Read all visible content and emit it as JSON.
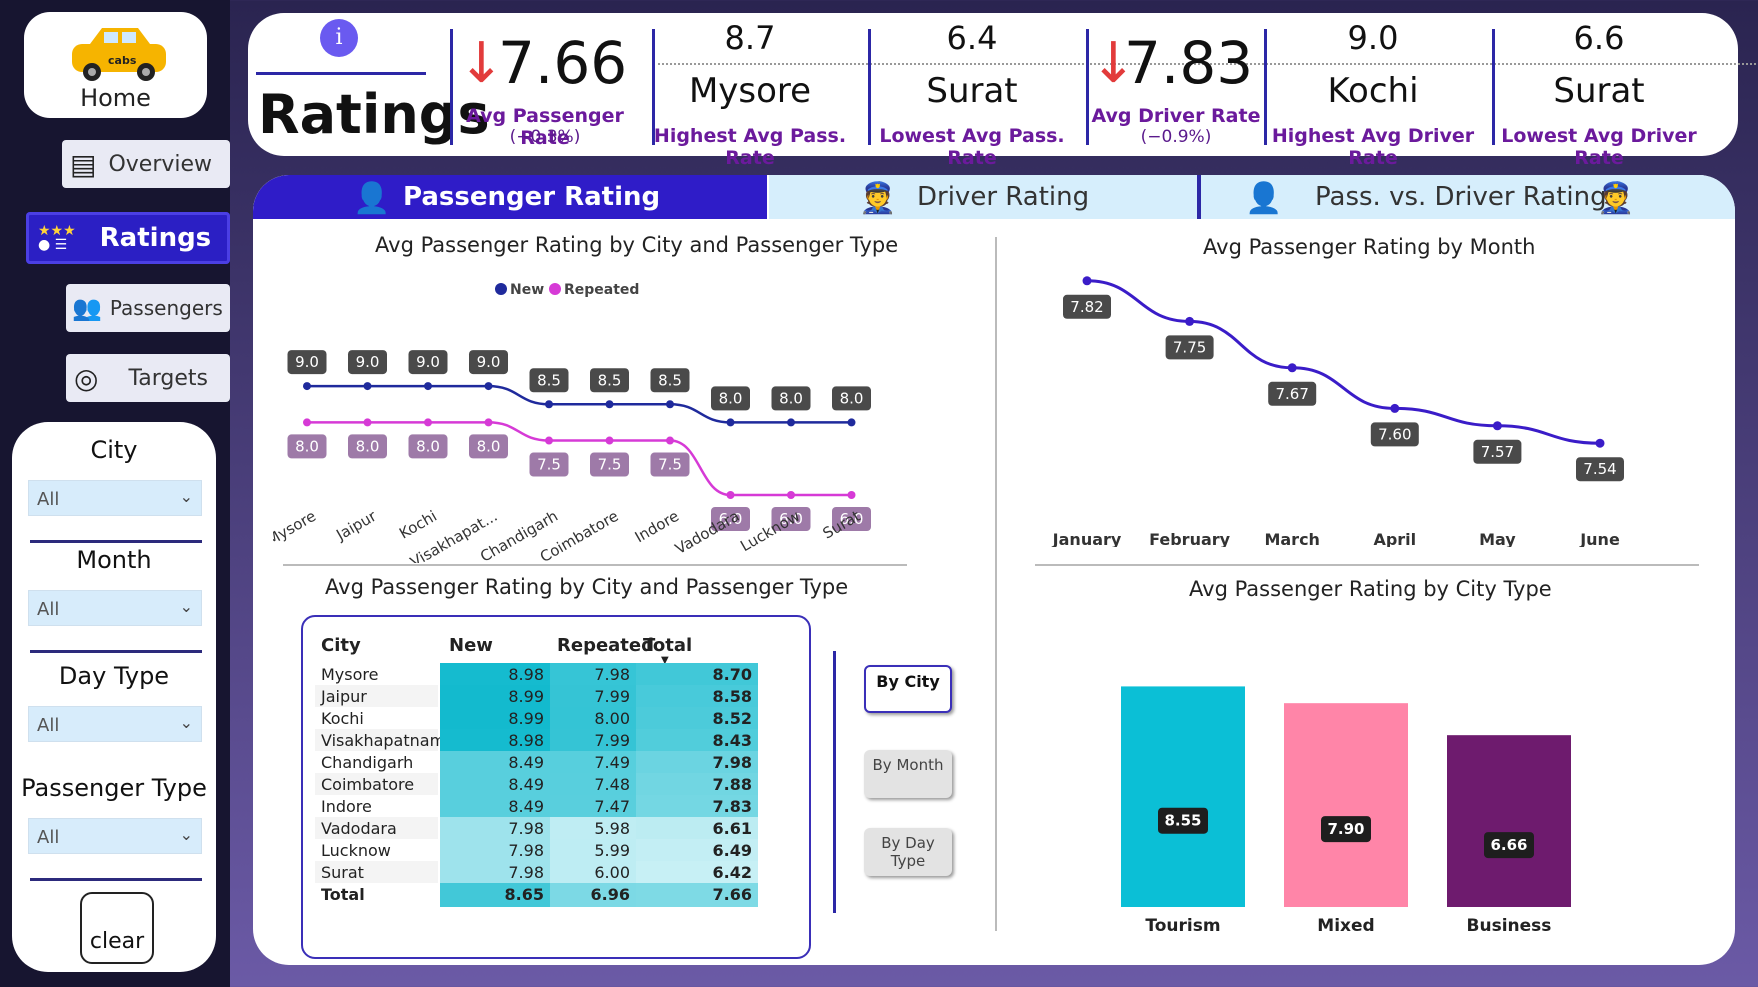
{
  "nav": {
    "home_label": "Home",
    "logo_text": "cabs",
    "items": [
      {
        "label": "Overview",
        "active": false
      },
      {
        "label": "Ratings",
        "active": true
      },
      {
        "label": "Passengers",
        "active": false
      },
      {
        "label": "Targets",
        "active": false
      }
    ]
  },
  "filters": {
    "city": {
      "title": "City",
      "value": "All"
    },
    "month": {
      "title": "Month",
      "value": "All"
    },
    "day_type": {
      "title": "Day Type",
      "value": "All"
    },
    "passenger_type": {
      "title": "Passenger Type",
      "value": "All"
    },
    "clear_label": "clear"
  },
  "kpi": {
    "title": "Ratings",
    "info_glyph": "i",
    "avg_pass": {
      "value": "7.66",
      "label": "Avg Passenger Rate",
      "change": "(−0.3%)"
    },
    "high_pass": {
      "value": "8.7",
      "city": "Mysore",
      "label": "Highest Avg Pass. Rate"
    },
    "low_pass": {
      "value": "6.4",
      "city": "Surat",
      "label": "Lowest Avg Pass. Rate"
    },
    "avg_driver": {
      "value": "7.83",
      "label": "Avg Driver Rate",
      "change": "(−0.9%)"
    },
    "high_driver": {
      "value": "9.0",
      "city": "Kochi",
      "label": "Highest Avg Driver Rate"
    },
    "low_driver": {
      "value": "6.6",
      "city": "Surat",
      "label": "Lowest Avg Driver Rate"
    },
    "arrow_glyph": "↓",
    "negative_color": "#e23b3b"
  },
  "tabs": [
    {
      "label": "Passenger Rating",
      "active": true
    },
    {
      "label": "Driver Rating",
      "active": false
    },
    {
      "label": "Pass. vs. Driver Rating",
      "active": false
    }
  ],
  "table": {
    "title": "Avg Passenger Rating by City and Passenger Type",
    "headers": [
      "City",
      "New",
      "Repeated",
      "Total"
    ],
    "rows": [
      [
        "Mysore",
        "8.98",
        "7.98",
        "8.70"
      ],
      [
        "Jaipur",
        "8.99",
        "7.99",
        "8.58"
      ],
      [
        "Kochi",
        "8.99",
        "8.00",
        "8.52"
      ],
      [
        "Visakhapatnam",
        "8.98",
        "7.99",
        "8.43"
      ],
      [
        "Chandigarh",
        "8.49",
        "7.49",
        "7.98"
      ],
      [
        "Coimbatore",
        "8.49",
        "7.48",
        "7.88"
      ],
      [
        "Indore",
        "8.49",
        "7.47",
        "7.83"
      ],
      [
        "Vadodara",
        "7.98",
        "5.98",
        "6.61"
      ],
      [
        "Lucknow",
        "7.98",
        "5.99",
        "6.49"
      ],
      [
        "Surat",
        "7.98",
        "6.00",
        "6.42"
      ]
    ],
    "total_row": [
      "Total",
      "8.65",
      "6.96",
      "7.66"
    ],
    "slicers": [
      {
        "label": "By City",
        "selected": true
      },
      {
        "label": "By Month",
        "selected": false
      },
      {
        "label": "By Day Type",
        "selected": false
      }
    ]
  },
  "chart_data": [
    {
      "type": "line",
      "title": "Avg Passenger Rating by City and Passenger Type",
      "categories": [
        "Mysore",
        "Jaipur",
        "Kochi",
        "Visakhapat...",
        "Chandigarh",
        "Coimbatore",
        "Indore",
        "Vadodara",
        "Lucknow",
        "Surat"
      ],
      "series": [
        {
          "name": "New",
          "color": "#1f2a9c",
          "values": [
            9.0,
            9.0,
            9.0,
            9.0,
            8.5,
            8.5,
            8.5,
            8.0,
            8.0,
            8.0
          ]
        },
        {
          "name": "Repeated",
          "color": "#d63ad6",
          "values": [
            8.0,
            8.0,
            8.0,
            8.0,
            7.5,
            7.5,
            7.5,
            6.0,
            6.0,
            6.0
          ]
        }
      ],
      "legend": "top-center",
      "grid": false
    },
    {
      "type": "line",
      "title": "Avg Passenger Rating by Month",
      "categories": [
        "January",
        "February",
        "March",
        "April",
        "May",
        "June"
      ],
      "series": [
        {
          "color": "#3a1cc8",
          "values": [
            7.82,
            7.75,
            7.67,
            7.6,
            7.57,
            7.54
          ]
        }
      ],
      "grid": false
    },
    {
      "type": "bar",
      "title": "Avg Passenger Rating by City Type",
      "categories": [
        "Tourism",
        "Mixed",
        "Business"
      ],
      "values": [
        8.55,
        7.9,
        6.66
      ],
      "colors": [
        "#0bbfd6",
        "#ff85a8",
        "#6e1b6e"
      ],
      "grid": false
    }
  ]
}
